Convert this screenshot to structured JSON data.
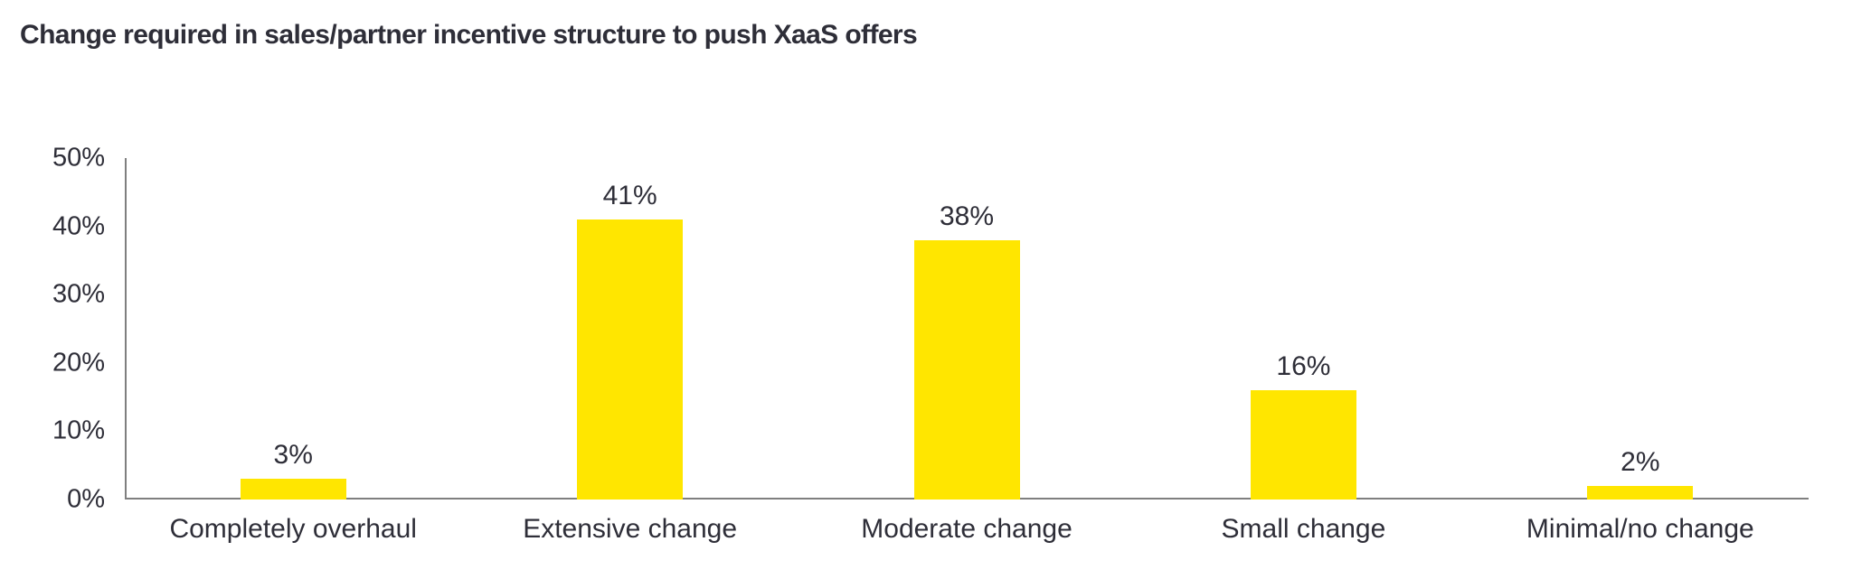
{
  "page": {
    "background_color": "#ffffff"
  },
  "header": {
    "title": "Change required in sales/partner incentive structure to push XaaS offers",
    "title_color": "#2e2e38"
  },
  "chart_data": {
    "type": "bar",
    "title": "Change required in sales/partner incentive structure to push XaaS offers",
    "categories": [
      "Completely overhaul",
      "Extensive change",
      "Moderate change",
      "Small change",
      "Minimal/no change"
    ],
    "values": [
      3,
      41,
      38,
      16,
      2
    ],
    "data_labels": [
      "3%",
      "41%",
      "38%",
      "16%",
      "2%"
    ],
    "xlabel": "",
    "ylabel": "",
    "ylim": [
      0,
      50
    ],
    "y_ticks": [
      "0%",
      "10%",
      "20%",
      "30%",
      "40%",
      "50%"
    ],
    "grid": false,
    "legend": false,
    "bar_color": "#ffe600",
    "axis_line_color": "#7f7f7f",
    "text_color": "#2e2e38"
  }
}
